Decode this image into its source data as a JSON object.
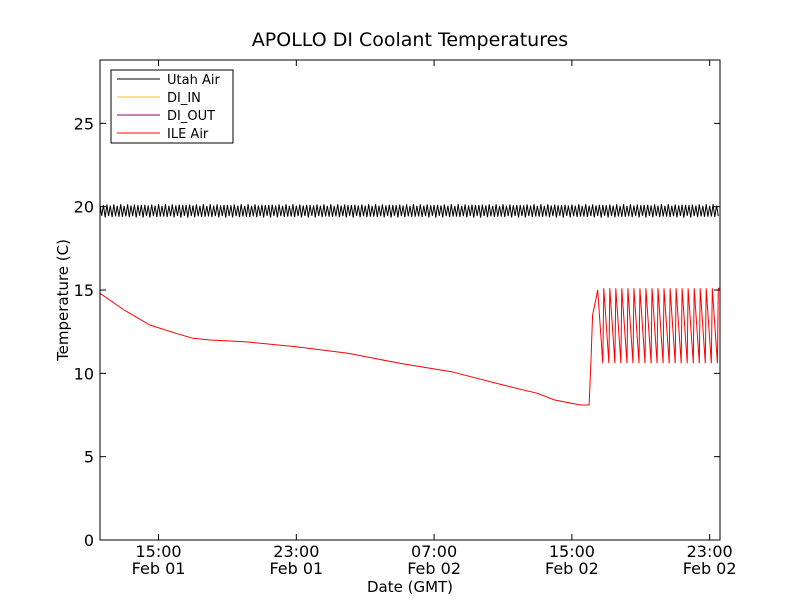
{
  "chart_data": {
    "type": "line",
    "title": "APOLLO DI Coolant Temperatures",
    "xlabel": "Date (GMT)",
    "ylabel": "Temperature (C)",
    "x_unit": "hours since Feb 01 00:00 GMT",
    "xlim": [
      11.6,
      47.6
    ],
    "ylim": [
      0,
      28.8
    ],
    "yticks": [
      0,
      5,
      10,
      15,
      20,
      25
    ],
    "xticks": [
      {
        "x": 15,
        "line1": "15:00",
        "line2": "Feb 01"
      },
      {
        "x": 23,
        "line1": "23:00",
        "line2": "Feb 01"
      },
      {
        "x": 31,
        "line1": "07:00",
        "line2": "Feb 02"
      },
      {
        "x": 39,
        "line1": "15:00",
        "line2": "Feb 02"
      },
      {
        "x": 47,
        "line1": "23:00",
        "line2": "Feb 02"
      }
    ],
    "legend_position": "top-left",
    "series": [
      {
        "name": "Utah Air",
        "color": "#000000",
        "description": "oscillates ~19.4-20.1 C",
        "base": 19.75,
        "amplitude": 0.35,
        "period_h": 0.2,
        "x": [
          11.6,
          47.6
        ],
        "y": [
          19.75,
          19.75
        ]
      },
      {
        "name": "DI_IN",
        "color": "#ffbf00",
        "x": [],
        "y": []
      },
      {
        "name": "DI_OUT",
        "color": "#7f007f",
        "x": [],
        "y": []
      },
      {
        "name": "ILE Air",
        "color": "#ff0000",
        "x": [
          11.6,
          13.0,
          14.5,
          16.0,
          17.0,
          18.0,
          20.0,
          23.0,
          26.0,
          29.0,
          32.0,
          35.0,
          37.0,
          38.0,
          39.5,
          40.0,
          40.1,
          40.2,
          40.5
        ],
        "y": [
          14.8,
          13.8,
          12.9,
          12.4,
          12.1,
          12.0,
          11.9,
          11.6,
          11.2,
          10.6,
          10.1,
          9.3,
          8.8,
          8.4,
          8.1,
          8.1,
          10.5,
          13.5,
          15.0
        ],
        "cycling": {
          "x_start": 40.5,
          "x_end": 47.6,
          "period_h": 0.35,
          "high": 15.1,
          "low": 10.6
        }
      }
    ]
  }
}
